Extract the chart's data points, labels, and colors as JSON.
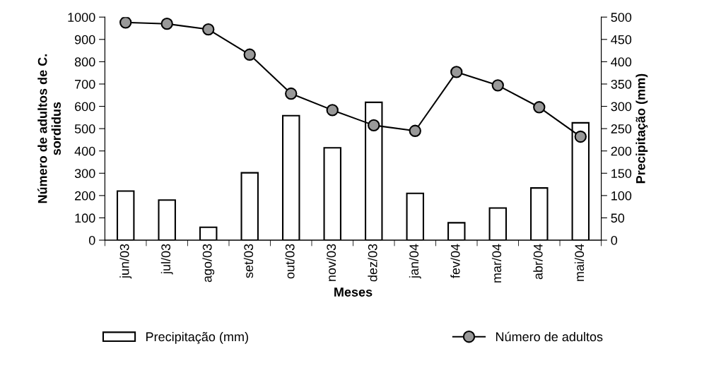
{
  "chart_data": {
    "type": "bar",
    "xlabel": "Meses",
    "ylabel": "Número de adultos de C.\nsordidus",
    "y2label": "Precipitação (mm)",
    "categories": [
      "jun/03",
      "jul/03",
      "ago/03",
      "set/03",
      "out/03",
      "nov/03",
      "dez/03",
      "jan/04",
      "fev/04",
      "mar/04",
      "abr/04",
      "mai/04"
    ],
    "series": [
      {
        "name": "Precipitação (mm)",
        "axis": "y2",
        "color": "#ffffff",
        "values": [
          110,
          90,
          29,
          151,
          279,
          207,
          309,
          105,
          39,
          72,
          117,
          263
        ]
      },
      {
        "name": "Número de adultos",
        "type": "line",
        "color": "#999999",
        "marker": "circle",
        "values": [
          976,
          970,
          945,
          832,
          657,
          583,
          515,
          490,
          754,
          694,
          596,
          464
        ]
      }
    ],
    "ylim": [
      0,
      1000
    ],
    "yticks": [
      0,
      100,
      200,
      300,
      400,
      500,
      600,
      700,
      800,
      900,
      1000
    ],
    "y2lim": [
      0,
      500
    ],
    "y2ticks": [
      0,
      50,
      100,
      150,
      200,
      250,
      300,
      350,
      400,
      450,
      500
    ],
    "grid": false,
    "legend": "bottom"
  }
}
